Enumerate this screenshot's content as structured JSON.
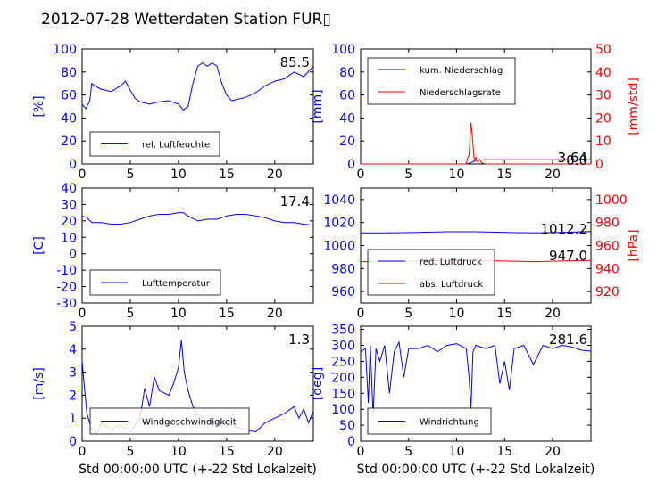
{
  "title": "2012-07-28 Wetterdaten Station FUR▯",
  "colors": {
    "left": "#0000ff",
    "right": "#ff0000",
    "text": "#000000"
  },
  "chart_data": [
    {
      "type": "line",
      "ylabel": "[%]",
      "xlim": [
        0,
        24
      ],
      "ylim": [
        0,
        100
      ],
      "xticks": [
        0,
        5,
        10,
        15,
        20
      ],
      "yticks": [
        0,
        20,
        40,
        60,
        80,
        100
      ],
      "last_value": "85.5",
      "legend": {
        "placement": "lower-left"
      },
      "series": [
        {
          "name": "rel. Luftfeuchte",
          "axis": "left",
          "color": "#0000ff",
          "x": [
            0,
            0.4,
            0.8,
            1.0,
            1.5,
            2,
            3,
            4,
            4.5,
            5,
            5.5,
            6,
            7,
            8,
            9,
            10,
            10.5,
            11,
            11.5,
            12,
            12.5,
            13,
            13.5,
            14,
            14.5,
            15,
            15.5,
            16,
            17,
            18,
            19,
            20,
            21,
            22,
            23,
            24
          ],
          "y": [
            52,
            48,
            55,
            70,
            67,
            65,
            63,
            68,
            72,
            64,
            57,
            54,
            52,
            54,
            55,
            52,
            47,
            50,
            70,
            85,
            88,
            85,
            88,
            85,
            70,
            60,
            55,
            56,
            58,
            62,
            68,
            72,
            74,
            80,
            76,
            85
          ]
        }
      ]
    },
    {
      "type": "line",
      "ylabel": "[mm]",
      "ylabel_right": "[mm/std]",
      "xlim": [
        0,
        24
      ],
      "ylim": [
        0,
        100
      ],
      "ylim_right": [
        0,
        50
      ],
      "xticks": [
        0,
        5,
        10,
        15,
        20
      ],
      "yticks": [
        0,
        20,
        40,
        60,
        80,
        100
      ],
      "yticks_right": [
        0,
        10,
        20,
        30,
        40,
        50
      ],
      "last_value": "3.64",
      "last_value_2": "0.0",
      "legend": {
        "placement": "upper-left"
      },
      "series": [
        {
          "name": "kum. Niederschlag",
          "axis": "left",
          "color": "#0000ff",
          "x": [
            0,
            11,
            11.3,
            11.6,
            11.9,
            12.3,
            13,
            24
          ],
          "y": [
            0,
            0,
            0.5,
            1.5,
            2.8,
            3.4,
            3.64,
            3.64
          ]
        },
        {
          "name": "Niederschlagsrate",
          "axis": "right",
          "color": "#ff0000",
          "x": [
            0,
            11,
            11.1,
            11.3,
            11.5,
            11.6,
            11.7,
            11.8,
            11.9,
            12.0,
            12.2,
            12.4,
            12.6,
            13,
            24
          ],
          "y": [
            0,
            0,
            2,
            4,
            18,
            14,
            9,
            3,
            1,
            3,
            1,
            2,
            0.5,
            0,
            0
          ]
        }
      ]
    },
    {
      "type": "line",
      "ylabel": "[C]",
      "xlim": [
        0,
        24
      ],
      "ylim": [
        -30,
        40
      ],
      "xticks": [
        0,
        5,
        10,
        15,
        20
      ],
      "yticks": [
        -30,
        -20,
        -10,
        0,
        10,
        20,
        30,
        40
      ],
      "last_value": "17.4",
      "legend": {
        "placement": "lower-left"
      },
      "series": [
        {
          "name": "Lufttemperatur",
          "axis": "left",
          "color": "#0000ff",
          "x": [
            0,
            0.5,
            1,
            2,
            3,
            4,
            5,
            6,
            7,
            8,
            9,
            10,
            10.5,
            11,
            12,
            13,
            14,
            15,
            16,
            17,
            18,
            19,
            20,
            21,
            22,
            23,
            24
          ],
          "y": [
            23,
            22,
            19,
            19,
            18,
            18,
            19,
            21,
            23,
            24,
            24,
            25,
            25,
            23,
            20,
            21,
            21,
            23,
            24,
            24,
            23,
            22,
            20,
            19,
            19,
            18,
            17.4
          ]
        }
      ]
    },
    {
      "type": "line",
      "ylabel_right": "[hPa]",
      "xlim": [
        0,
        24
      ],
      "ylim": [
        950,
        1050
      ],
      "ylim_right": [
        910,
        1010
      ],
      "xticks": [
        0,
        5,
        10,
        15,
        20
      ],
      "yticks": [
        960,
        980,
        1000,
        1020,
        1040
      ],
      "yticks_right": [
        920,
        940,
        960,
        980,
        1000
      ],
      "last_value": "1012.2",
      "last_value_2": "947.0",
      "legend": {
        "placement": "lower-left"
      },
      "series": [
        {
          "name": "red. Luftdruck",
          "axis": "left",
          "color": "#0000ff",
          "x": [
            0,
            3,
            6,
            9,
            12,
            15,
            18,
            21,
            24
          ],
          "y": [
            1011,
            1011,
            1011.5,
            1012,
            1012,
            1011.5,
            1011,
            1011.5,
            1012.2
          ]
        },
        {
          "name": "abs. Luftdruck",
          "axis": "right",
          "color": "#ff0000",
          "x": [
            0,
            3,
            6,
            9,
            12,
            15,
            18,
            21,
            24
          ],
          "y": [
            946,
            946,
            946.5,
            947,
            947,
            946.5,
            946,
            946.5,
            947
          ]
        }
      ]
    },
    {
      "type": "line",
      "ylabel": "[m/s]",
      "xlabel": "Std 00:00:00 UTC (+-22 Std Lokalzeit)",
      "xlim": [
        0,
        24
      ],
      "ylim": [
        0,
        5
      ],
      "xticks": [
        0,
        5,
        10,
        15,
        20
      ],
      "yticks": [
        0,
        1,
        2,
        3,
        4,
        5
      ],
      "last_value": "1.3",
      "legend": {
        "placement": "lower-center"
      },
      "series": [
        {
          "name": "Windgeschwindigkeit",
          "axis": "left",
          "color": "#0000ff",
          "x": [
            0,
            0.2,
            0.5,
            1,
            1.5,
            2,
            3,
            4,
            5,
            6,
            6.5,
            7,
            7.5,
            8,
            9,
            9.5,
            10,
            10.3,
            10.6,
            11,
            11.5,
            12,
            13,
            14,
            15,
            16,
            17,
            18,
            19,
            20,
            21,
            22,
            22.5,
            23,
            23.5,
            24
          ],
          "y": [
            3.5,
            2.5,
            1.2,
            0.5,
            0.3,
            0.8,
            0.5,
            0.7,
            0.4,
            1.0,
            2.3,
            1.5,
            2.8,
            2.2,
            2.0,
            2.5,
            3.2,
            4.4,
            3.0,
            2.2,
            1.5,
            1.2,
            0.9,
            0.7,
            0.8,
            0.6,
            0.5,
            0.4,
            0.8,
            1.0,
            1.2,
            1.5,
            1.0,
            1.4,
            0.8,
            1.3
          ]
        }
      ]
    },
    {
      "type": "line",
      "ylabel": "[deg]",
      "xlabel": "Std 00:00:00 UTC (+-22 Std Lokalzeit)",
      "xlim": [
        0,
        24
      ],
      "ylim": [
        0,
        360
      ],
      "xticks": [
        0,
        5,
        10,
        15,
        20
      ],
      "yticks": [
        0,
        50,
        100,
        150,
        200,
        250,
        300,
        350
      ],
      "last_value": "281.6",
      "legend": {
        "placement": "lower-left"
      },
      "series": [
        {
          "name": "Windrichtung",
          "axis": "left",
          "color": "#0000ff",
          "x": [
            0,
            0.5,
            0.8,
            1,
            1.3,
            1.6,
            2,
            2.5,
            3,
            3.5,
            4,
            4.5,
            5,
            6,
            7,
            8,
            9,
            10,
            11,
            11.3,
            11.5,
            11.7,
            12,
            13,
            14,
            14.5,
            15,
            15.5,
            16,
            17,
            18,
            19,
            20,
            21,
            22,
            23,
            24
          ],
          "y": [
            280,
            290,
            120,
            300,
            80,
            290,
            250,
            300,
            150,
            280,
            310,
            200,
            290,
            290,
            300,
            280,
            300,
            305,
            290,
            200,
            100,
            280,
            300,
            290,
            300,
            180,
            250,
            160,
            290,
            300,
            240,
            300,
            290,
            300,
            295,
            285,
            281.6
          ]
        }
      ]
    }
  ]
}
